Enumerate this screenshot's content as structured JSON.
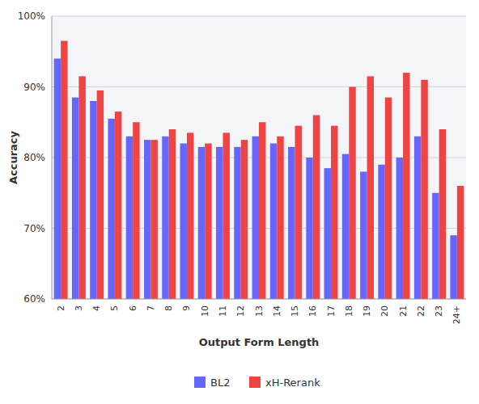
{
  "chart_data": {
    "type": "bar",
    "xlabel": "Output Form Length",
    "ylabel": "Accuracy",
    "categories": [
      "2",
      "3",
      "4",
      "5",
      "6",
      "7",
      "8",
      "9",
      "10",
      "11",
      "12",
      "13",
      "14",
      "15",
      "16",
      "17",
      "18",
      "19",
      "20",
      "21",
      "22",
      "23",
      "24+"
    ],
    "series": [
      {
        "name": "BL2",
        "color": "#6666ff",
        "values": [
          94.0,
          88.5,
          88.0,
          85.5,
          83.0,
          82.5,
          83.0,
          82.0,
          81.5,
          81.5,
          81.5,
          83.0,
          82.0,
          81.5,
          80.0,
          78.5,
          80.5,
          78.0,
          79.0,
          80.0,
          83.0,
          75.0,
          69.0
        ]
      },
      {
        "name": "xH-Rerank",
        "color": "#ee4444",
        "values": [
          96.5,
          91.5,
          89.5,
          86.5,
          85.0,
          82.5,
          84.0,
          83.5,
          82.0,
          83.5,
          82.5,
          85.0,
          83.0,
          84.5,
          86.0,
          84.5,
          90.0,
          91.5,
          88.5,
          92.0,
          91.0,
          84.0,
          76.0
        ]
      }
    ],
    "ylim": [
      60,
      100
    ],
    "yticks": [
      {
        "value": 60,
        "label": "60%"
      },
      {
        "value": 70,
        "label": "70%"
      },
      {
        "value": 80,
        "label": "80%"
      },
      {
        "value": 90,
        "label": "90%"
      },
      {
        "value": 100,
        "label": "100%"
      }
    ],
    "grid": true,
    "legend": "bottom"
  }
}
